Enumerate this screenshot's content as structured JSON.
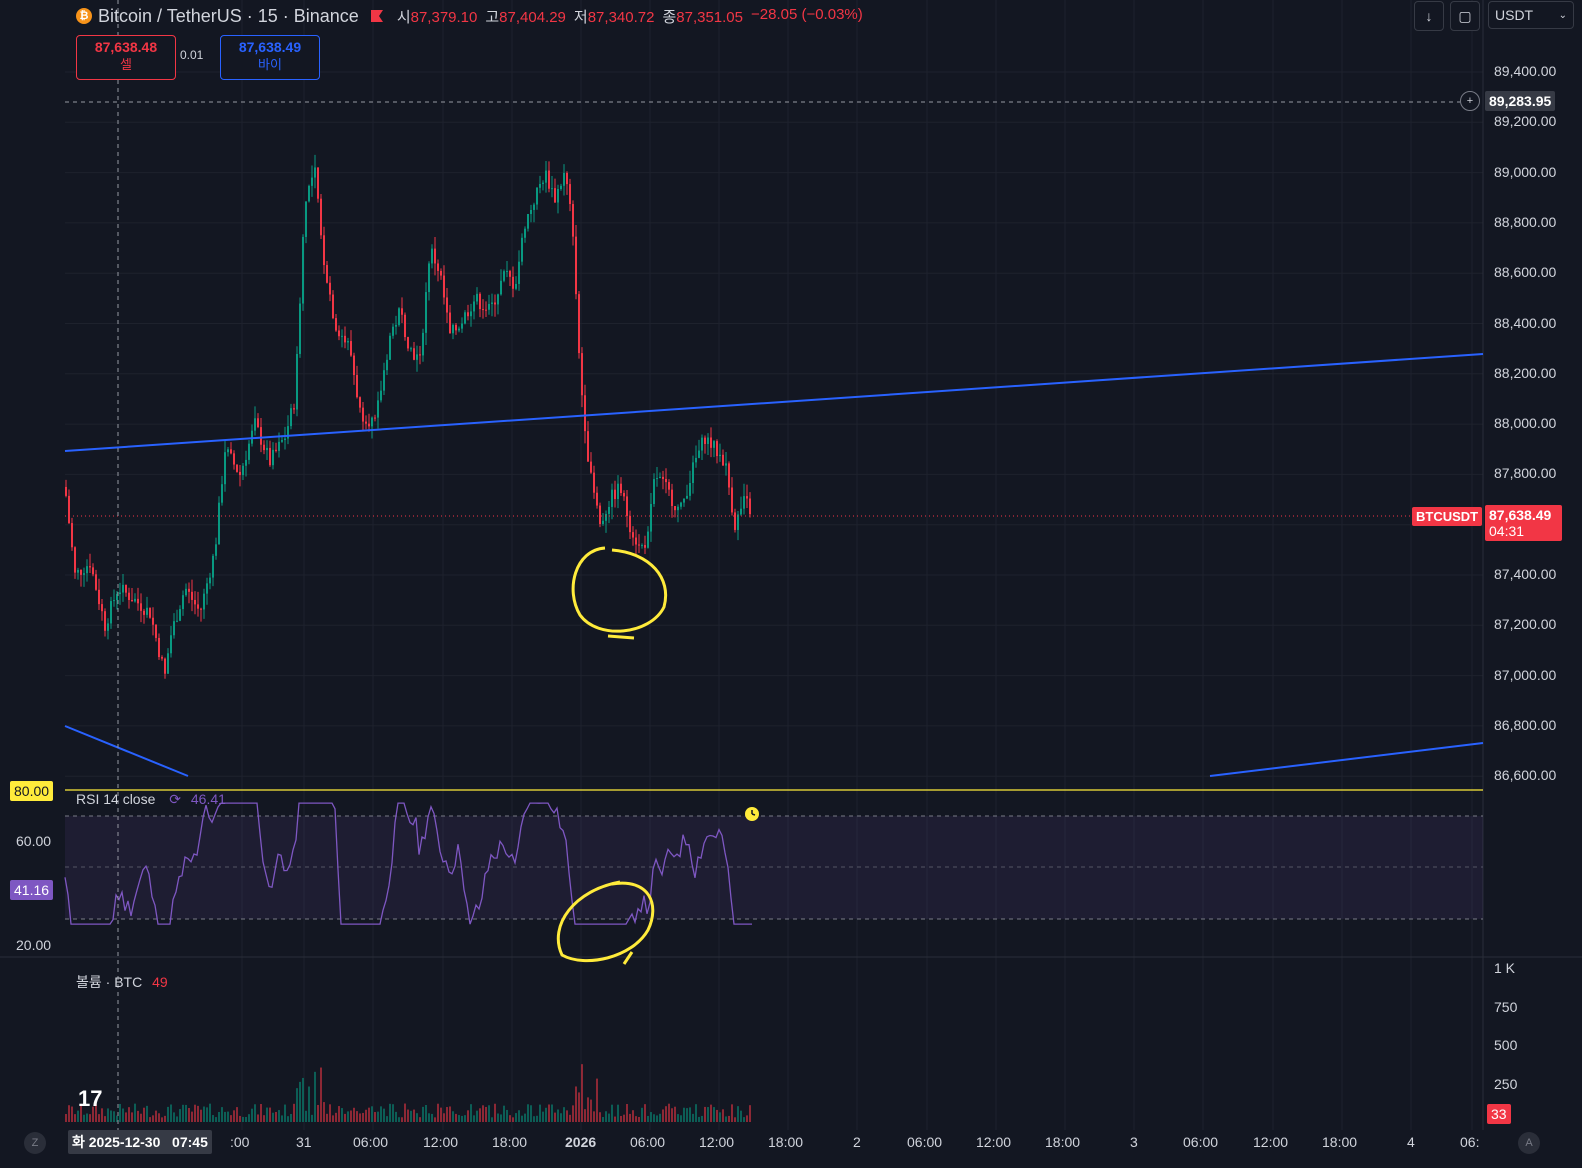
{
  "header": {
    "symbol_title": "Bitcoin / TetherUS · 15 · Binance",
    "ohlc": [
      {
        "label": "시",
        "value": "87,379.10"
      },
      {
        "label": "고",
        "value": "87,404.29"
      },
      {
        "label": "저",
        "value": "87,340.72"
      },
      {
        "label": "종",
        "value": "87,351.05"
      }
    ],
    "change": "−28.05 (−0.03%)"
  },
  "trade": {
    "sell_price": "87,638.48",
    "sell_label": "셀",
    "spread": "0.01",
    "buy_price": "87,638.49",
    "buy_label": "바이"
  },
  "toolbar": {
    "currency": "USDT"
  },
  "price_axis": {
    "ticks": [
      "89,400.00",
      "89,200.00",
      "89,000.00",
      "88,800.00",
      "88,600.00",
      "88,400.00",
      "88,200.00",
      "88,000.00",
      "87,800.00",
      "87,600.00",
      "87,400.00",
      "87,200.00",
      "87,000.00",
      "86,800.00",
      "86,600.00"
    ],
    "crosshair_price": "89,283.95",
    "last_price": "87,638.49",
    "countdown": "04:31",
    "symbol_tag": "BTCUSDT"
  },
  "rsi": {
    "title": "RSI 14 close",
    "value": "46.41",
    "ticks": [
      "80.00",
      "60.00",
      "20.00"
    ],
    "current": "41.16"
  },
  "volume": {
    "title": "볼륨 · BTC",
    "value": "49",
    "ticks": [
      "1 K",
      "750",
      "500",
      "250"
    ],
    "current": "33"
  },
  "time_axis": {
    "crosshair_label": "화 2025-12-30   07:45",
    "labels": [
      ":00",
      "31",
      "06:00",
      "12:00",
      "18:00",
      "2026",
      "06:00",
      "12:00",
      "18:00",
      "2",
      "06:00",
      "12:00",
      "18:00",
      "3",
      "06:00",
      "12:00",
      "18:00",
      "4",
      "06:"
    ]
  },
  "corner_buttons": {
    "left": "Z",
    "right": "A"
  },
  "colors": {
    "background": "#131722",
    "up": "#089981",
    "down": "#f23645",
    "trendline": "#2962ff",
    "rsi_line": "#7e57c2",
    "annotation": "#ffeb3b"
  },
  "chart_data": {
    "type": "candlestick",
    "price_range": [
      86600,
      89400
    ],
    "rsi_range": [
      20,
      80
    ],
    "volume_range": [
      0,
      1000
    ],
    "last_price": 87638.49
  }
}
